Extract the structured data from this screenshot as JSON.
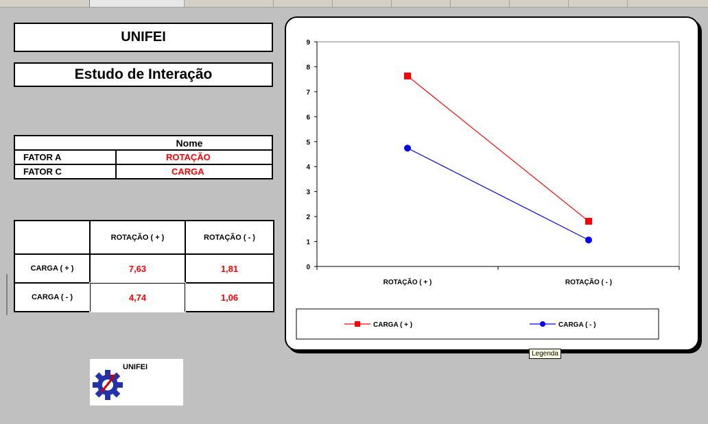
{
  "title": "UNIFEI",
  "subtitle": "Estudo de Interação",
  "factors": {
    "header": "Nome",
    "rows": [
      {
        "label": "FATOR A",
        "name": "ROTAÇÃO"
      },
      {
        "label": "FATOR C",
        "name": "CARGA"
      }
    ]
  },
  "results": {
    "col_headers": [
      "ROTAÇÃO ( + )",
      "ROTAÇÃO ( - )"
    ],
    "rows": [
      {
        "label": "CARGA ( + )",
        "values": [
          "7,63",
          "1,81"
        ]
      },
      {
        "label": "CARGA ( - )",
        "values": [
          "4,74",
          "1,06"
        ]
      }
    ]
  },
  "chart_data": {
    "type": "line",
    "categories": [
      "ROTAÇÃO ( + )",
      "ROTAÇÃO ( - )"
    ],
    "series": [
      {
        "name": "CARGA ( + )",
        "values": [
          7.63,
          1.81
        ],
        "color": "#ff0000",
        "marker": "square"
      },
      {
        "name": "CARGA ( - )",
        "values": [
          4.74,
          1.06
        ],
        "color": "#0000ff",
        "marker": "circle"
      }
    ],
    "ylim": [
      0,
      9
    ],
    "yticks": [
      "0",
      "1",
      "2",
      "3",
      "4",
      "5",
      "6",
      "7",
      "8",
      "9"
    ],
    "legend_position": "bottom",
    "grid": false
  },
  "tooltip": "Legenda",
  "logo_text": "UNIFEI",
  "colors": {
    "line_plus": "#ff0000",
    "line_minus": "#0000ff",
    "background": "#c0c0c0"
  }
}
